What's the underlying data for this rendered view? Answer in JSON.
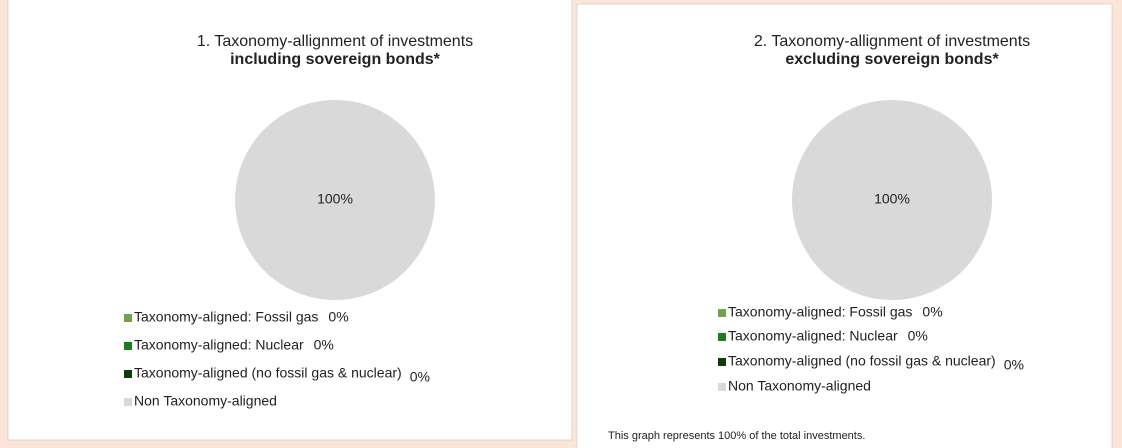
{
  "chart_data": [
    {
      "type": "pie",
      "title": "1. Taxonomy-allignment of investments",
      "subtitle": "including sovereign bonds*",
      "categories": [
        "Taxonomy-aligned: Fossil gas",
        "Taxonomy-aligned: Nuclear",
        "Taxonomy-aligned (no fossil gas & nuclear)",
        "Non Taxonomy-aligned"
      ],
      "values": [
        0,
        0,
        0,
        100
      ],
      "value_labels": [
        "0%",
        "0%",
        "0%",
        "100%"
      ],
      "colors": [
        "#77a04a",
        "#1c7d1c",
        "#0d3b0d",
        "#d9d9d9"
      ]
    },
    {
      "type": "pie",
      "title": "2. Taxonomy-allignment of investments",
      "subtitle": "excluding sovereign bonds*",
      "categories": [
        "Taxonomy-aligned: Fossil gas",
        "Taxonomy-aligned: Nuclear",
        "Taxonomy-aligned (no fossil gas & nuclear)",
        "Non Taxonomy-aligned"
      ],
      "values": [
        0,
        0,
        0,
        100
      ],
      "value_labels": [
        "0%",
        "0%",
        "0%",
        "100%"
      ],
      "colors": [
        "#77a04a",
        "#1c7d1c",
        "#0d3b0d",
        "#d9d9d9"
      ],
      "note": "This graph represents 100% of the total investments."
    }
  ]
}
